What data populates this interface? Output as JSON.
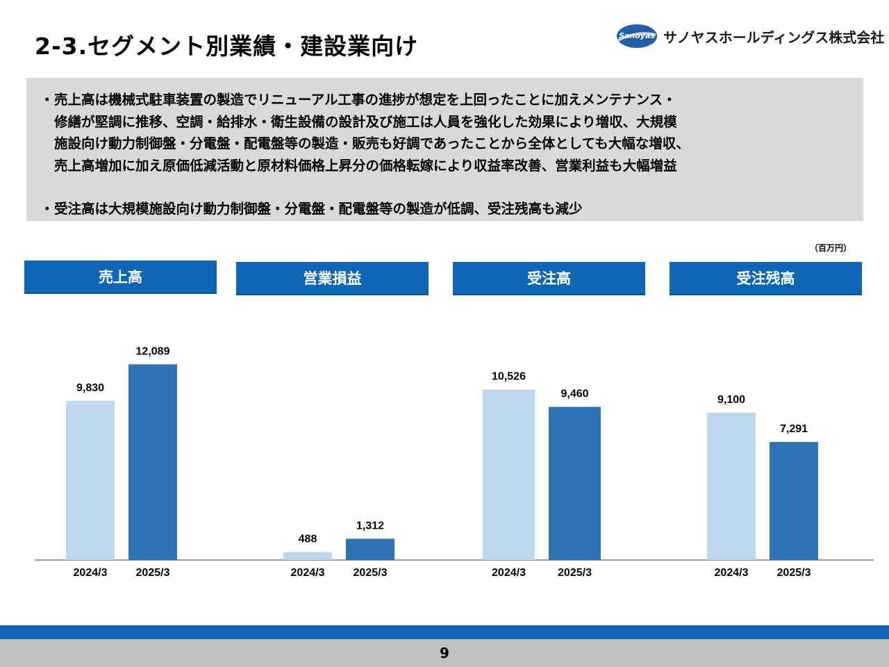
{
  "header": {
    "title": "2-3.セグメント別業績・建設業向け",
    "logo_mark": "Sanoyas",
    "company": "サノヤスホールディングス株式会社"
  },
  "summary": {
    "bullet1": [
      "売上高は機械式駐車装置の製造でリニューアル工事の進捗が想定を上回ったことに加えメンテナンス・",
      "修繕が堅調に推移、空調・給排水・衛生設備の設計及び施工は人員を強化した効果により増収、大規模",
      "施設向け動力制御盤・分電盤・配電盤等の製造・販売も好調であったことから全体としても大幅な増収、",
      "売上高増加に加え原価低減活動と原材料価格上昇分の価格転嫁により収益率改善、営業利益も大幅増益"
    ],
    "bullet2": [
      "受注高は大規模施設向け動力制御盤・分電盤・配電盤等の製造が低調、受注残高も減少"
    ],
    "bullet_mark": "・"
  },
  "unit_label": "（百万円）",
  "footer": {
    "page": "9"
  },
  "colors": {
    "accent": "#0d67b5",
    "bar_prev": "#bdd7ee",
    "bar_curr": "#2e75b6"
  },
  "chart_data": [
    {
      "type": "bar",
      "title": "売上高",
      "categories": [
        "2024/3",
        "2025/3"
      ],
      "values": [
        9830,
        12089
      ],
      "labels": [
        "9,830",
        "12,089"
      ]
    },
    {
      "type": "bar",
      "title": "営業損益",
      "categories": [
        "2024/3",
        "2025/3"
      ],
      "values": [
        488,
        1312
      ],
      "labels": [
        "488",
        "1,312"
      ]
    },
    {
      "type": "bar",
      "title": "受注高",
      "categories": [
        "2024/3",
        "2025/3"
      ],
      "values": [
        10526,
        9460
      ],
      "labels": [
        "10,526",
        "9,460"
      ]
    },
    {
      "type": "bar",
      "title": "受注残高",
      "categories": [
        "2024/3",
        "2025/3"
      ],
      "values": [
        9100,
        7291
      ],
      "labels": [
        "9,100",
        "7,291"
      ]
    }
  ]
}
